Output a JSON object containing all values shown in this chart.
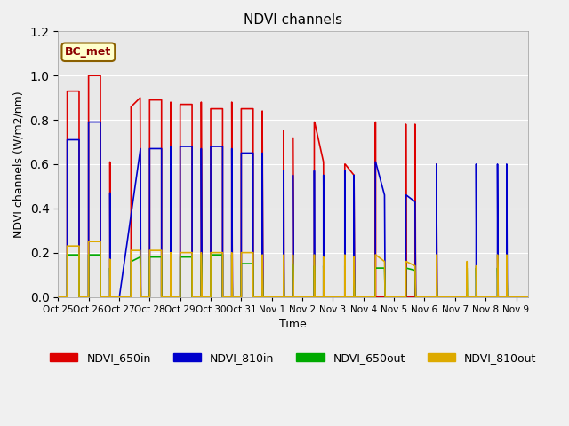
{
  "title": "NDVI channels",
  "ylabel": "NDVI channels (W/m2/nm)",
  "xlabel": "Time",
  "annotation": "BC_met",
  "ylim": [
    0.0,
    1.2
  ],
  "legend_labels": [
    "NDVI_650in",
    "NDVI_810in",
    "NDVI_650out",
    "NDVI_810out"
  ],
  "legend_colors": [
    "#dd0000",
    "#0000cc",
    "#00aa00",
    "#ddaa00"
  ],
  "xtick_labels": [
    "Oct 25",
    "Oct 26",
    "Oct 27",
    "Oct 28",
    "Oct 29",
    "Oct 30",
    "Oct 31",
    "Nov 1",
    "Nov 2",
    "Nov 3",
    "Nov 4",
    "Nov 5",
    "Nov 6",
    "Nov 7",
    "Nov 8",
    "Nov 9"
  ],
  "xtick_positions": [
    0,
    1,
    2,
    3,
    4,
    5,
    6,
    7,
    8,
    9,
    10,
    11,
    12,
    13,
    14,
    15
  ],
  "NDVI_650in_x": [
    0.0,
    0.3,
    0.3,
    0.69,
    0.69,
    0.7,
    0.9,
    1.0,
    1.0,
    1.39,
    1.39,
    1.4,
    1.5,
    1.7,
    1.7,
    1.71,
    2.0,
    2.39,
    2.39,
    2.4,
    2.4,
    2.69,
    2.69,
    2.71,
    2.9,
    3.0,
    3.0,
    3.39,
    3.39,
    3.4,
    3.5,
    3.69,
    3.69,
    3.71,
    3.9,
    4.0,
    4.0,
    4.39,
    4.39,
    4.4,
    4.5,
    4.69,
    4.69,
    4.71,
    4.9,
    5.0,
    5.0,
    5.39,
    5.39,
    5.4,
    5.5,
    5.69,
    5.69,
    5.71,
    5.9,
    6.0,
    6.0,
    6.39,
    6.39,
    6.4,
    6.5,
    6.69,
    6.69,
    6.71,
    7.0,
    7.39,
    7.39,
    7.4,
    7.5,
    7.69,
    7.69,
    7.71,
    8.0,
    8.39,
    8.39,
    8.4,
    8.4,
    8.69,
    8.69,
    8.71,
    9.0,
    9.39,
    9.39,
    9.4,
    9.4,
    9.69,
    9.69,
    9.71,
    10.0,
    10.39,
    10.39,
    10.4,
    10.4,
    10.69,
    10.69,
    10.71,
    11.0,
    11.39,
    11.39,
    11.4,
    11.5,
    11.69,
    11.69,
    11.71,
    12.0,
    12.39,
    12.39,
    12.41
  ],
  "NDVI_650in_y": [
    0.0,
    0.0,
    0.93,
    0.93,
    0.0,
    0.0,
    0.0,
    0.0,
    1.0,
    1.0,
    0.0,
    0.0,
    0.0,
    0.0,
    0.61,
    0.0,
    0.0,
    0.0,
    0.86,
    0.86,
    0.86,
    0.9,
    0.9,
    0.0,
    0.0,
    0.0,
    0.89,
    0.89,
    0.0,
    0.0,
    0.0,
    0.0,
    0.88,
    0.0,
    0.0,
    0.0,
    0.87,
    0.87,
    0.0,
    0.0,
    0.0,
    0.0,
    0.88,
    0.0,
    0.0,
    0.0,
    0.85,
    0.85,
    0.0,
    0.0,
    0.0,
    0.0,
    0.88,
    0.0,
    0.0,
    0.0,
    0.85,
    0.85,
    0.0,
    0.0,
    0.0,
    0.0,
    0.84,
    0.0,
    0.0,
    0.0,
    0.75,
    0.0,
    0.0,
    0.0,
    0.72,
    0.0,
    0.0,
    0.0,
    0.79,
    0.79,
    0.79,
    0.61,
    0.61,
    0.0,
    0.0,
    0.0,
    0.6,
    0.6,
    0.6,
    0.55,
    0.55,
    0.0,
    0.0,
    0.0,
    0.79,
    0.79,
    0.0,
    0.0,
    0.0,
    0.0,
    0.0,
    0.0,
    0.78,
    0.0,
    0.0,
    0.0,
    0.78,
    0.0,
    0.0,
    0.0,
    0.6,
    0.0
  ],
  "NDVI_810in_x": [
    0.0,
    0.3,
    0.3,
    0.69,
    0.69,
    0.7,
    0.9,
    1.0,
    1.0,
    1.39,
    1.39,
    1.4,
    1.5,
    1.7,
    1.7,
    1.71,
    2.01,
    2.7,
    2.7,
    2.71,
    2.9,
    3.0,
    3.0,
    3.39,
    3.39,
    3.4,
    3.5,
    3.69,
    3.69,
    3.71,
    3.9,
    4.0,
    4.0,
    4.39,
    4.39,
    4.4,
    4.5,
    4.69,
    4.69,
    4.71,
    4.9,
    5.0,
    5.0,
    5.39,
    5.39,
    5.4,
    5.5,
    5.69,
    5.69,
    5.71,
    5.9,
    6.0,
    6.0,
    6.39,
    6.39,
    6.4,
    6.5,
    6.69,
    6.69,
    6.71,
    7.0,
    7.39,
    7.39,
    7.4,
    7.5,
    7.69,
    7.69,
    7.71,
    8.0,
    8.39,
    8.39,
    8.4,
    8.5,
    8.69,
    8.69,
    8.71,
    9.0,
    9.39,
    9.39,
    9.4,
    9.5,
    9.69,
    9.69,
    9.71,
    10.0,
    10.39,
    10.39,
    10.4,
    10.4,
    10.69,
    10.69,
    10.71,
    11.0,
    11.39,
    11.39,
    11.4,
    11.4,
    11.69,
    11.69,
    11.71,
    12.0,
    12.39,
    12.39,
    12.41,
    13.0,
    13.69,
    13.69,
    13.71,
    14.0,
    14.39,
    14.39,
    14.41,
    14.5,
    14.69,
    14.69,
    14.71,
    15.0,
    15.39
  ],
  "NDVI_810in_y": [
    0.0,
    0.0,
    0.71,
    0.71,
    0.0,
    0.0,
    0.0,
    0.0,
    0.79,
    0.79,
    0.0,
    0.0,
    0.0,
    0.0,
    0.47,
    0.0,
    0.0,
    0.67,
    0.67,
    0.0,
    0.0,
    0.0,
    0.67,
    0.67,
    0.0,
    0.0,
    0.0,
    0.0,
    0.68,
    0.0,
    0.0,
    0.0,
    0.68,
    0.68,
    0.0,
    0.0,
    0.0,
    0.0,
    0.67,
    0.0,
    0.0,
    0.0,
    0.68,
    0.68,
    0.0,
    0.0,
    0.0,
    0.0,
    0.67,
    0.0,
    0.0,
    0.0,
    0.65,
    0.65,
    0.0,
    0.0,
    0.0,
    0.0,
    0.65,
    0.0,
    0.0,
    0.0,
    0.57,
    0.0,
    0.0,
    0.0,
    0.55,
    0.0,
    0.0,
    0.0,
    0.57,
    0.0,
    0.0,
    0.0,
    0.55,
    0.0,
    0.0,
    0.0,
    0.57,
    0.0,
    0.0,
    0.0,
    0.55,
    0.0,
    0.0,
    0.0,
    0.61,
    0.61,
    0.61,
    0.46,
    0.46,
    0.0,
    0.0,
    0.0,
    0.46,
    0.46,
    0.46,
    0.43,
    0.43,
    0.0,
    0.0,
    0.0,
    0.6,
    0.0,
    0.0,
    0.0,
    0.6,
    0.0,
    0.0,
    0.0,
    0.6,
    0.0,
    0.0,
    0.0,
    0.6,
    0.0,
    0.0,
    0.0
  ],
  "NDVI_650out_x": [
    0.0,
    0.3,
    0.3,
    0.69,
    0.69,
    0.7,
    0.9,
    1.0,
    1.0,
    1.39,
    1.39,
    1.4,
    1.5,
    1.7,
    1.7,
    1.71,
    2.0,
    2.39,
    2.39,
    2.4,
    2.4,
    2.69,
    2.69,
    2.71,
    2.9,
    3.0,
    3.0,
    3.39,
    3.39,
    3.4,
    3.5,
    3.69,
    3.69,
    3.71,
    3.9,
    4.0,
    4.0,
    4.39,
    4.39,
    4.4,
    4.5,
    4.69,
    4.69,
    4.71,
    4.9,
    5.0,
    5.0,
    5.39,
    5.39,
    5.4,
    5.5,
    5.69,
    5.69,
    5.71,
    5.9,
    6.0,
    6.0,
    6.39,
    6.39,
    6.4,
    6.5,
    6.69,
    6.69,
    6.71,
    7.0,
    7.39,
    7.39,
    7.4,
    7.5,
    7.69,
    7.69,
    7.71,
    8.0,
    8.39,
    8.39,
    8.4,
    8.5,
    8.69,
    8.69,
    8.71,
    9.0,
    9.39,
    9.39,
    9.4,
    9.5,
    9.69,
    9.69,
    9.71,
    10.0,
    10.39,
    10.39,
    10.4,
    10.4,
    10.69,
    10.69,
    10.71,
    11.0,
    11.39,
    11.39,
    11.4,
    11.4,
    11.69,
    11.69,
    11.71,
    12.0,
    12.39,
    12.39,
    12.41,
    13.0,
    13.39,
    13.39,
    13.4,
    13.5,
    13.69,
    13.69,
    13.71,
    14.0,
    14.39,
    14.39,
    14.41,
    14.5,
    14.69,
    14.69,
    14.71,
    15.0,
    15.39
  ],
  "NDVI_650out_y": [
    0.0,
    0.0,
    0.19,
    0.19,
    0.0,
    0.0,
    0.0,
    0.0,
    0.19,
    0.19,
    0.0,
    0.0,
    0.0,
    0.0,
    0.13,
    0.0,
    0.0,
    0.0,
    0.16,
    0.16,
    0.16,
    0.18,
    0.18,
    0.0,
    0.0,
    0.0,
    0.18,
    0.18,
    0.0,
    0.0,
    0.0,
    0.0,
    0.17,
    0.0,
    0.0,
    0.0,
    0.18,
    0.18,
    0.0,
    0.0,
    0.0,
    0.0,
    0.19,
    0.0,
    0.0,
    0.0,
    0.19,
    0.19,
    0.0,
    0.0,
    0.0,
    0.0,
    0.19,
    0.0,
    0.0,
    0.0,
    0.15,
    0.15,
    0.0,
    0.0,
    0.0,
    0.0,
    0.15,
    0.0,
    0.0,
    0.0,
    0.15,
    0.0,
    0.0,
    0.0,
    0.15,
    0.0,
    0.0,
    0.0,
    0.14,
    0.0,
    0.0,
    0.0,
    0.14,
    0.0,
    0.0,
    0.0,
    0.14,
    0.0,
    0.0,
    0.0,
    0.14,
    0.0,
    0.0,
    0.0,
    0.13,
    0.13,
    0.13,
    0.13,
    0.13,
    0.0,
    0.0,
    0.0,
    0.13,
    0.13,
    0.13,
    0.12,
    0.12,
    0.0,
    0.0,
    0.0,
    0.13,
    0.0,
    0.0,
    0.0,
    0.13,
    0.0,
    0.0,
    0.0,
    0.13,
    0.0,
    0.0,
    0.0,
    0.13,
    0.0,
    0.0,
    0.0,
    0.13,
    0.0,
    0.0,
    0.0
  ],
  "NDVI_810out_x": [
    0.0,
    0.3,
    0.3,
    0.69,
    0.69,
    0.7,
    0.9,
    1.0,
    1.0,
    1.39,
    1.39,
    1.4,
    1.5,
    1.7,
    1.7,
    1.71,
    2.0,
    2.39,
    2.39,
    2.4,
    2.4,
    2.69,
    2.69,
    2.71,
    2.9,
    3.0,
    3.0,
    3.39,
    3.39,
    3.4,
    3.5,
    3.69,
    3.69,
    3.71,
    3.9,
    4.0,
    4.0,
    4.39,
    4.39,
    4.4,
    4.5,
    4.69,
    4.69,
    4.71,
    4.9,
    5.0,
    5.0,
    5.39,
    5.39,
    5.4,
    5.5,
    5.69,
    5.69,
    5.71,
    5.9,
    6.0,
    6.0,
    6.39,
    6.39,
    6.4,
    6.5,
    6.69,
    6.69,
    6.71,
    7.0,
    7.39,
    7.39,
    7.4,
    7.5,
    7.69,
    7.69,
    7.71,
    8.0,
    8.39,
    8.39,
    8.4,
    8.5,
    8.69,
    8.69,
    8.71,
    9.0,
    9.39,
    9.39,
    9.4,
    9.5,
    9.69,
    9.69,
    9.71,
    10.0,
    10.39,
    10.39,
    10.4,
    10.4,
    10.69,
    10.69,
    10.71,
    11.0,
    11.39,
    11.39,
    11.4,
    11.4,
    11.69,
    11.69,
    11.71,
    12.0,
    12.39,
    12.39,
    12.41,
    13.0,
    13.39,
    13.39,
    13.4,
    13.5,
    13.69,
    13.69,
    13.71,
    14.0,
    14.39,
    14.39,
    14.41,
    14.5,
    14.69,
    14.69,
    14.71,
    15.0,
    15.39
  ],
  "NDVI_810out_y": [
    0.0,
    0.0,
    0.23,
    0.23,
    0.0,
    0.0,
    0.0,
    0.0,
    0.25,
    0.25,
    0.0,
    0.0,
    0.0,
    0.0,
    0.17,
    0.0,
    0.0,
    0.0,
    0.21,
    0.21,
    0.21,
    0.21,
    0.21,
    0.0,
    0.0,
    0.0,
    0.21,
    0.21,
    0.0,
    0.0,
    0.0,
    0.0,
    0.2,
    0.0,
    0.0,
    0.0,
    0.2,
    0.2,
    0.0,
    0.0,
    0.0,
    0.0,
    0.2,
    0.0,
    0.0,
    0.0,
    0.2,
    0.2,
    0.0,
    0.0,
    0.0,
    0.0,
    0.2,
    0.0,
    0.0,
    0.0,
    0.2,
    0.2,
    0.0,
    0.0,
    0.0,
    0.0,
    0.19,
    0.0,
    0.0,
    0.0,
    0.19,
    0.0,
    0.0,
    0.0,
    0.19,
    0.0,
    0.0,
    0.0,
    0.19,
    0.0,
    0.0,
    0.0,
    0.18,
    0.0,
    0.0,
    0.0,
    0.19,
    0.0,
    0.0,
    0.0,
    0.18,
    0.0,
    0.0,
    0.0,
    0.19,
    0.19,
    0.19,
    0.16,
    0.16,
    0.0,
    0.0,
    0.0,
    0.16,
    0.16,
    0.16,
    0.14,
    0.14,
    0.0,
    0.0,
    0.0,
    0.19,
    0.0,
    0.0,
    0.0,
    0.16,
    0.0,
    0.0,
    0.0,
    0.14,
    0.0,
    0.0,
    0.0,
    0.19,
    0.0,
    0.0,
    0.0,
    0.19,
    0.0,
    0.0,
    0.0
  ]
}
